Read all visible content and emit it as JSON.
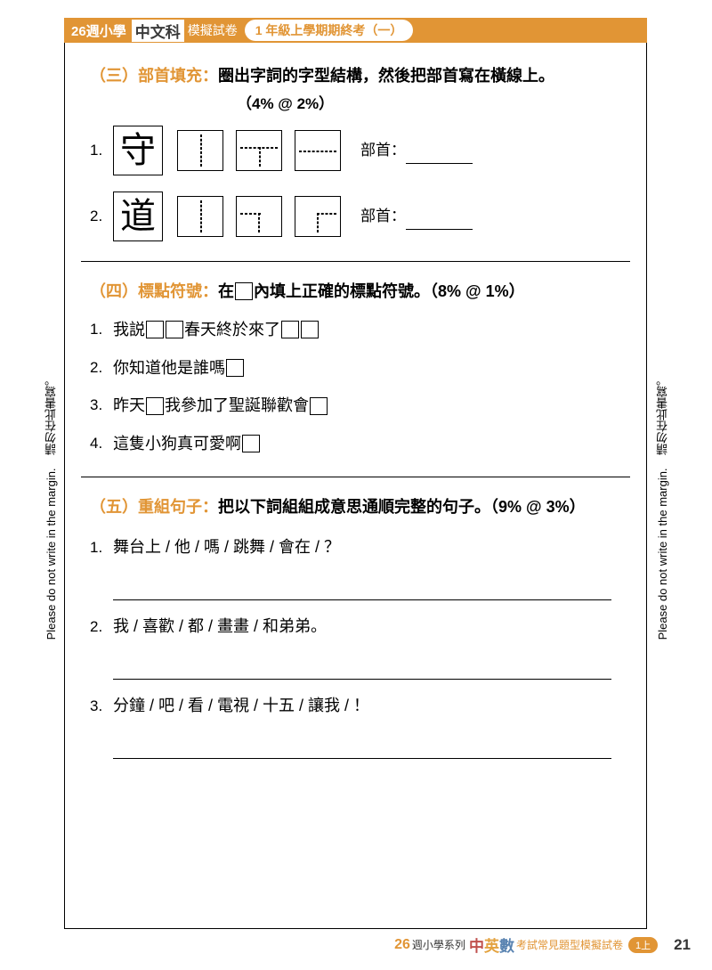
{
  "colors": {
    "accent": "#e19535",
    "text": "#000000",
    "border": "#000000"
  },
  "header": {
    "logo_num": "26",
    "logo_text": "週小學",
    "subject": "中文科",
    "mock": "模擬試卷",
    "bubble": "1 年級上學期期終考（一）"
  },
  "margin_note": {
    "en": "Please do not write in the margin.",
    "cn": "請勿在此書寫。"
  },
  "section3": {
    "num": "（三）",
    "name": "部首填充：",
    "instr": "圈出字詞的字型結構，然後把部首寫在橫線上。",
    "percent": "（4%  @  2%）",
    "items": [
      {
        "n": "1.",
        "char": "守",
        "radical_label": "部首："
      },
      {
        "n": "2.",
        "char": "道",
        "radical_label": "部首："
      }
    ],
    "structures": [
      [
        "left-right",
        "top-bottom",
        "top-bottom2"
      ],
      [
        "left-right",
        "bottom-left-L",
        "bottom-right-L"
      ]
    ]
  },
  "section4": {
    "num": "（四）",
    "name": "標點符號：",
    "instr_pre": "在",
    "instr_post": "內填上正確的標點符號。（8% @ 1%）",
    "items": [
      {
        "n": "1.",
        "parts": [
          "我説",
          "BOX",
          "BOX",
          "春天終於來了",
          "BOX",
          "BOX"
        ]
      },
      {
        "n": "2.",
        "parts": [
          "你知道他是誰嗎",
          "BOX"
        ]
      },
      {
        "n": "3.",
        "parts": [
          "昨天",
          "BOX",
          "我參加了聖誕聯歡會",
          "BOX"
        ]
      },
      {
        "n": "4.",
        "parts": [
          "這隻小狗真可愛啊",
          "BOX"
        ]
      }
    ]
  },
  "section5": {
    "num": "（五）",
    "name": "重組句子：",
    "instr": "把以下詞組組成意思通順完整的句子。（9% @ 3%）",
    "items": [
      {
        "n": "1.",
        "text": "舞台上 / 他 / 嗎 / 跳舞 / 會在 / ？"
      },
      {
        "n": "2.",
        "text": "我 / 喜歡 / 都 / 畫畫 / 和弟弟。"
      },
      {
        "n": "3.",
        "text": "分鐘 / 吧 / 看 / 電視 / 十五 / 讓我 / ！"
      }
    ]
  },
  "footer": {
    "brand_num": "26",
    "series": "週小學系列",
    "subj_c1": "中",
    "subj_c2": "英",
    "subj_c3": "數",
    "desc": "考試常見題型模擬試卷",
    "level": "1上",
    "page": "21"
  }
}
